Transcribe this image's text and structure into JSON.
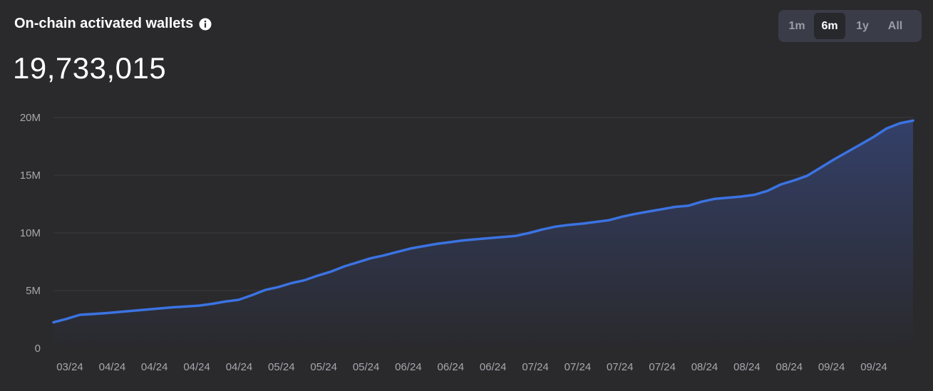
{
  "header": {
    "title": "On-chain activated wallets",
    "value": "19,733,015"
  },
  "range": {
    "options": [
      "1m",
      "6m",
      "1y",
      "All"
    ],
    "selected": "6m"
  },
  "colors": {
    "line": "#3b73e2",
    "area_top": "#34406a",
    "background": "#2a2a2d",
    "grid": "#3a3a3f"
  },
  "chart_data": {
    "type": "area",
    "title": "On-chain activated wallets",
    "ylim": [
      0,
      20000000
    ],
    "y_ticks": [
      {
        "value": 0,
        "label": "0"
      },
      {
        "value": 5000000,
        "label": "5M"
      },
      {
        "value": 10000000,
        "label": "10M"
      },
      {
        "value": 15000000,
        "label": "15M"
      },
      {
        "value": 20000000,
        "label": "20M"
      }
    ],
    "x_ticks": [
      "03/24",
      "04/24",
      "04/24",
      "04/24",
      "04/24",
      "05/24",
      "05/24",
      "05/24",
      "06/24",
      "06/24",
      "06/24",
      "07/24",
      "07/24",
      "07/24",
      "07/24",
      "08/24",
      "08/24",
      "08/24",
      "09/24",
      "09/24"
    ],
    "grid": true,
    "series": [
      {
        "values": [
          2250000,
          2550000,
          2900000,
          2970000,
          3050000,
          3150000,
          3250000,
          3350000,
          3450000,
          3550000,
          3620000,
          3700000,
          3850000,
          4050000,
          4200000,
          4600000,
          5050000,
          5300000,
          5650000,
          5900000,
          6300000,
          6650000,
          7100000,
          7450000,
          7800000,
          8050000,
          8350000,
          8650000,
          8850000,
          9050000,
          9200000,
          9350000,
          9450000,
          9550000,
          9650000,
          9750000,
          10000000,
          10300000,
          10550000,
          10700000,
          10800000,
          10950000,
          11100000,
          11400000,
          11650000,
          11850000,
          12050000,
          12250000,
          12350000,
          12700000,
          12950000,
          13050000,
          13150000,
          13300000,
          13650000,
          14200000,
          14550000,
          14950000,
          15650000,
          16350000,
          17000000,
          17650000,
          18300000,
          19050000,
          19500000,
          19733015
        ]
      }
    ]
  }
}
